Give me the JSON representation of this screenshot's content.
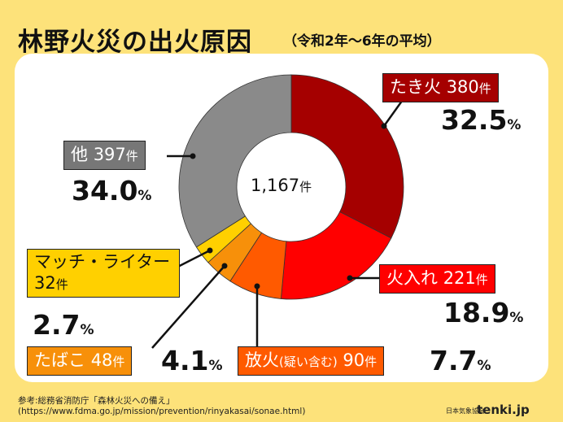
{
  "header": {
    "title": "林野火災の出火原因",
    "subtitle": "（令和2年～6年の平均）"
  },
  "center": {
    "total": "1,167",
    "unit": "件"
  },
  "chart_data": {
    "type": "pie",
    "title": "林野火災の出火原因",
    "subtitle": "（令和2年～6年の平均）",
    "total": 1167,
    "unit": "件",
    "slices": [
      {
        "key": "takibi",
        "label": "たき火",
        "count": 380,
        "percent": 32.5,
        "color": "#a50000"
      },
      {
        "key": "hiire",
        "label": "火入れ",
        "count": 221,
        "percent": 18.9,
        "color": "#ff0000"
      },
      {
        "key": "houka",
        "label": "放火",
        "label_note": "(疑い含む)",
        "count": 90,
        "percent": 7.7,
        "color": "#ff5a00"
      },
      {
        "key": "tabako",
        "label": "たばこ",
        "count": 48,
        "percent": 4.1,
        "color": "#f7900a"
      },
      {
        "key": "match",
        "label": "マッチ・ライター",
        "count": 32,
        "percent": 2.7,
        "color": "#ffd000"
      },
      {
        "key": "other",
        "label": "他",
        "count": 397,
        "percent": 34.0,
        "color": "#8a8a8a"
      }
    ]
  },
  "labels": {
    "unit": "件",
    "pct_unit": "%",
    "takibi": {
      "name": "たき火",
      "count": "380",
      "pct": "32.5"
    },
    "hiire": {
      "name": "火入れ",
      "count": "221",
      "pct": "18.9"
    },
    "houka": {
      "name": "放火",
      "note": "(疑い含む)",
      "count": "90",
      "pct": "7.7"
    },
    "tabako": {
      "name": "たばこ",
      "count": "48",
      "pct": "4.1"
    },
    "match": {
      "name": "マッチ・ライター",
      "count": "32",
      "pct": "2.7"
    },
    "other": {
      "name": "他",
      "count": "397",
      "pct": "34.0"
    }
  },
  "footer": {
    "source_line1": "参考:総務省消防庁「森林火災への備え」",
    "source_line2": "(https://www.fdma.go.jp/mission/prevention/rinyakasai/sonae.html)",
    "org": "日本気象協会",
    "brand": "tenki.jp"
  }
}
